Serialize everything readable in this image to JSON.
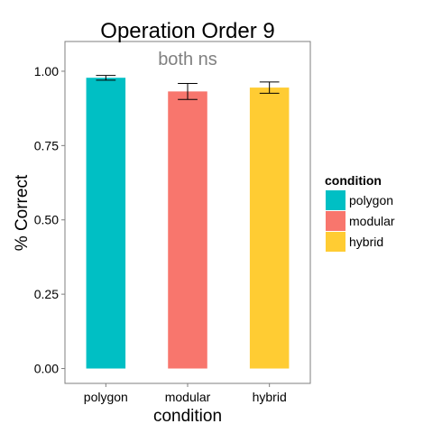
{
  "chart_data": {
    "type": "bar",
    "title": "Operation Order 9",
    "annotation": "both ns",
    "xlabel": "condition",
    "ylabel": "% Correct",
    "categories": [
      "polygon",
      "modular",
      "hybrid"
    ],
    "values": [
      0.978,
      0.932,
      0.945
    ],
    "error_low": [
      0.97,
      0.905,
      0.926
    ],
    "error_high": [
      0.986,
      0.959,
      0.964
    ],
    "colors": [
      "#00BFC4",
      "#F8766D",
      "#FFCC33"
    ],
    "ylim": [
      -0.05,
      1.1
    ],
    "yticks": [
      0.0,
      0.25,
      0.5,
      0.75,
      1.0
    ],
    "ytick_labels": [
      "0.00",
      "0.25",
      "0.50",
      "0.75",
      "1.00"
    ],
    "grid": false,
    "legend": {
      "title": "condition",
      "position": "right",
      "entries": [
        "polygon",
        "modular",
        "hybrid"
      ]
    }
  }
}
